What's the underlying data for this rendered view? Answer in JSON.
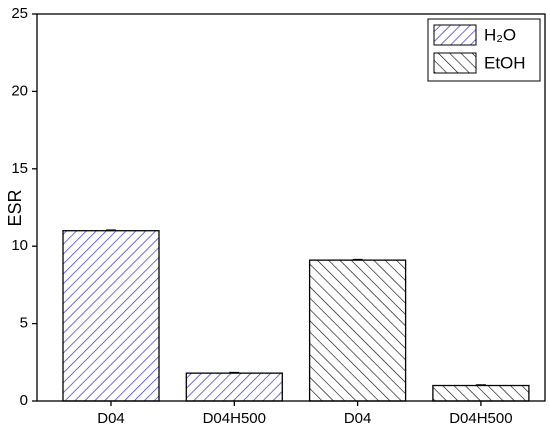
{
  "chart_data": {
    "type": "bar",
    "y_label": "ESR",
    "categories": [
      "D04",
      "D04H500",
      "D04",
      "D04H500"
    ],
    "series": [
      {
        "name": "H₂O",
        "color": "#3333cc",
        "hatch": "/",
        "values": [
          11.0,
          1.8,
          null,
          null
        ],
        "errors": [
          0.05,
          0.05,
          null,
          null
        ]
      },
      {
        "name": "EtOH",
        "color": "#000000",
        "hatch": "\\",
        "values": [
          null,
          null,
          9.1,
          1.0
        ],
        "errors": [
          null,
          null,
          0.05,
          0.05
        ]
      }
    ],
    "ylim": [
      0,
      25
    ],
    "yticks": [
      0,
      5,
      10,
      15,
      20,
      25
    ],
    "legend": "upper right"
  }
}
